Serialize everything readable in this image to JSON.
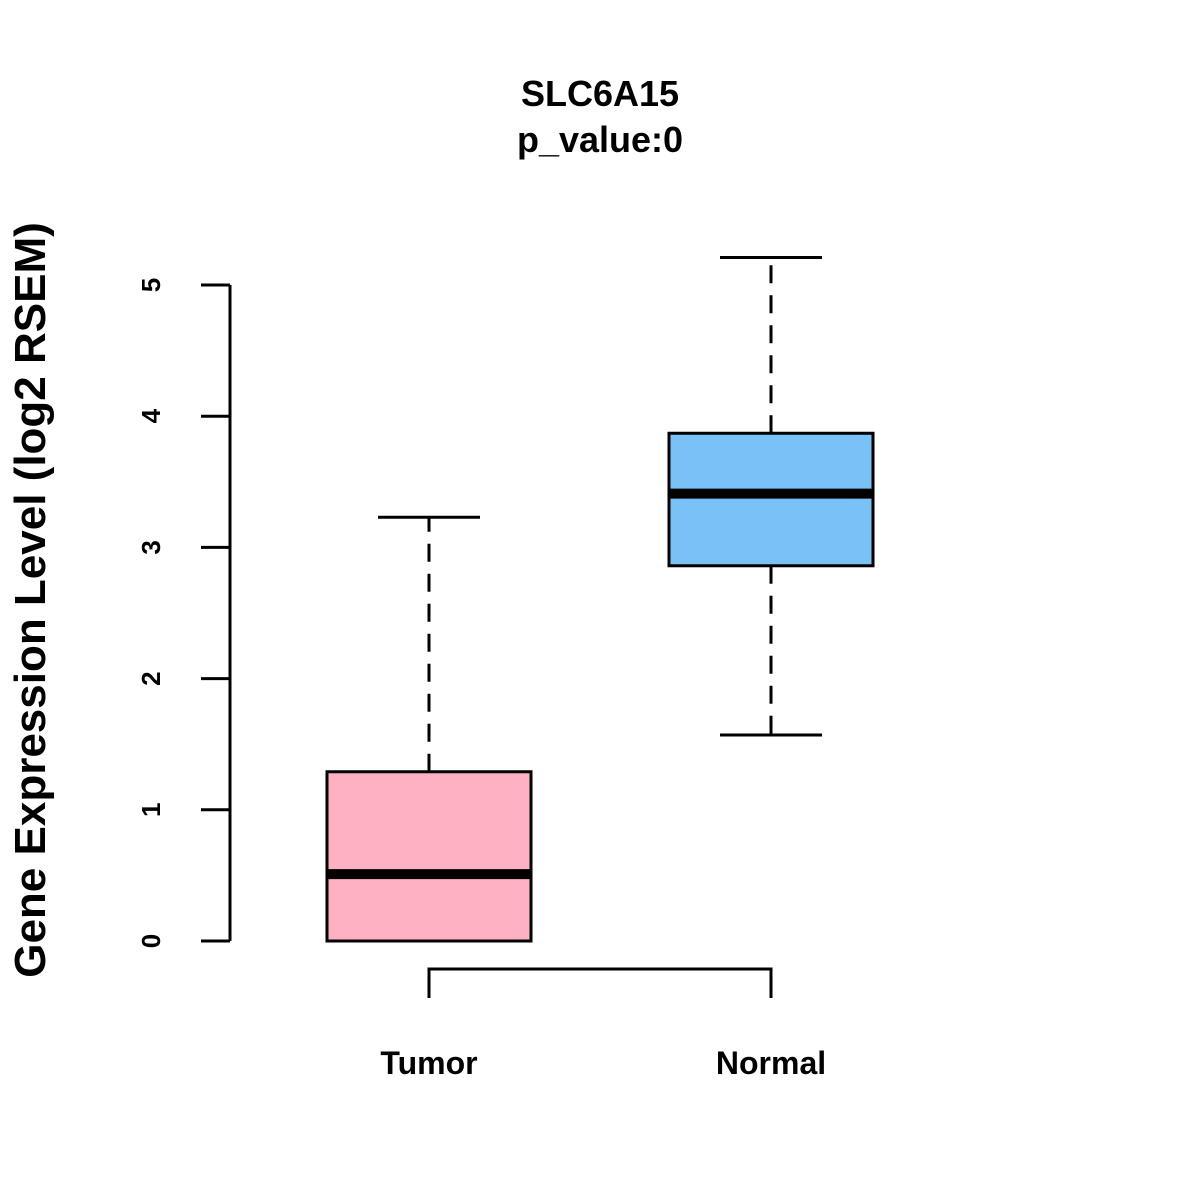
{
  "chart_data": {
    "type": "boxplot",
    "title": "SLC6A15",
    "subtitle": "p_value:0",
    "xlabel": "",
    "ylabel": "Gene Expression Level (log2 RSEM)",
    "ylim": [
      0,
      5
    ],
    "yticks": [
      "0",
      "1",
      "2",
      "3",
      "4",
      "5"
    ],
    "grid": false,
    "categories": [
      "Tumor",
      "Normal"
    ],
    "boxes": [
      {
        "name": "Tumor",
        "color": "#FDB1C3",
        "whisker_low": 0.0,
        "q1": 0.0,
        "median": 0.51,
        "q3": 1.29,
        "whisker_high": 3.23
      },
      {
        "name": "Normal",
        "color": "#78C2F8",
        "whisker_low": 1.57,
        "q1": 2.86,
        "median": 3.41,
        "q3": 3.87,
        "whisker_high": 5.21
      }
    ],
    "comparison_bracket": [
      "Tumor",
      "Normal"
    ]
  }
}
